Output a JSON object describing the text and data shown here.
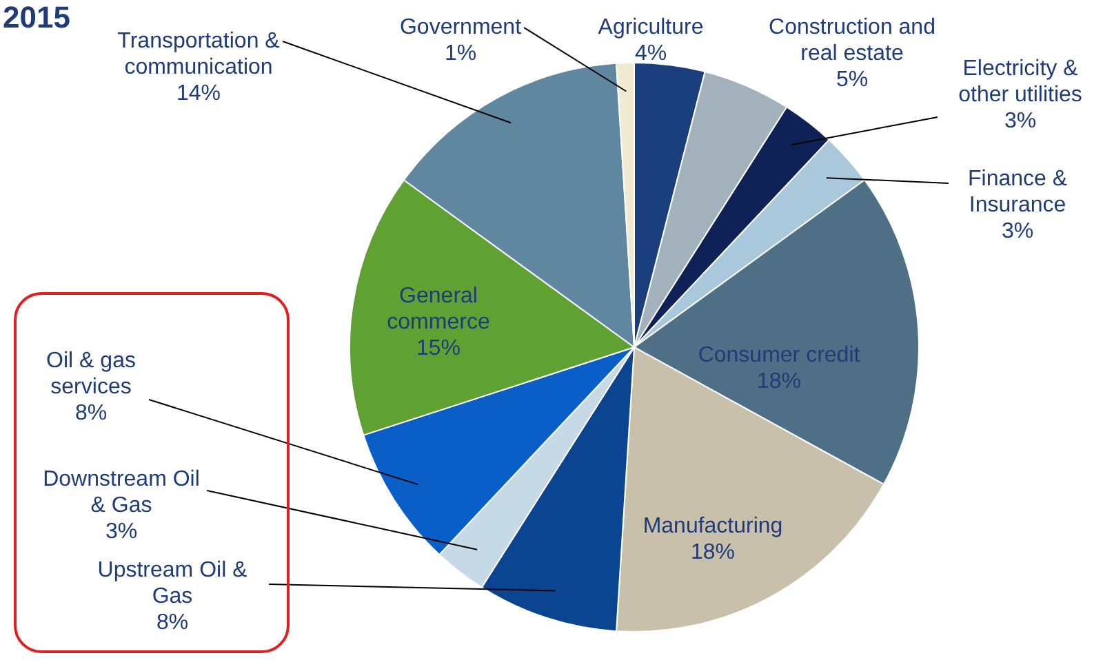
{
  "chart_data": {
    "type": "pie",
    "title": "2015",
    "categories": [
      "Agriculture",
      "Construction and real estate",
      "Electricity & other utilities",
      "Finance & Insurance",
      "Consumer credit",
      "Manufacturing",
      "Upstream Oil & Gas",
      "Downstream Oil & Gas",
      "Oil & gas services",
      "General commerce",
      "Transportation & communication",
      "Government"
    ],
    "values": [
      4,
      5,
      3,
      3,
      18,
      18,
      8,
      3,
      8,
      15,
      14,
      1
    ],
    "colors": [
      "#1b3f7c",
      "#a3b1bd",
      "#0f2258",
      "#a9c8dc",
      "#4f6f87",
      "#c8c0ab",
      "#0b4490",
      "#c5d9e6",
      "#0a5ec8",
      "#5fa233",
      "#5f87a0",
      "#f0ead0"
    ],
    "value_labels": [
      "4%",
      "5%",
      "3%",
      "3%",
      "18%",
      "18%",
      "8%",
      "3%",
      "8%",
      "15%",
      "14%",
      "1%"
    ],
    "legend": false
  }
}
